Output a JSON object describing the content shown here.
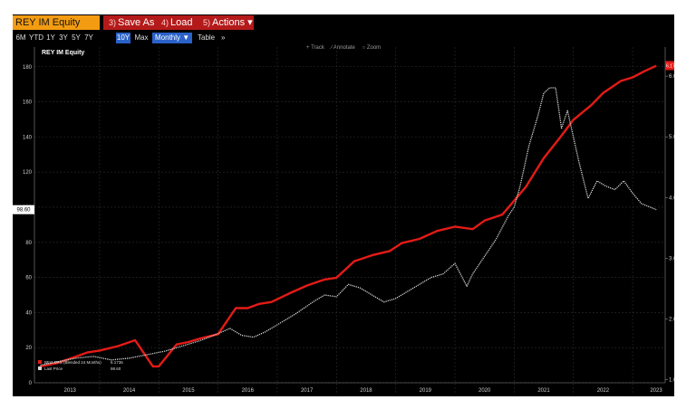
{
  "toolbar": {
    "ticker": "REY IM Equity",
    "save": {
      "num": "3)",
      "label": "Save As"
    },
    "load": {
      "num": "4)",
      "label": "Load"
    },
    "actions": {
      "num": "5)",
      "label": "Actions ▾"
    }
  },
  "ranges": [
    "6M",
    "YTD",
    "1Y",
    "3Y",
    "5Y",
    "7Y",
    "10Y",
    "Max"
  ],
  "active_range": "10Y",
  "frequency": "Monthly ▼",
  "table_label": "Table",
  "expand_label": "»",
  "tools": [
    "+ Track",
    "∕ Annotate",
    "○ Zoom"
  ],
  "colors": {
    "eps": "#e41b17",
    "price": "#d8d8d8",
    "ticker_bg": "#f39c12",
    "menu_bg": "#b41a1a",
    "active": "#2a62c9"
  },
  "chart_data": {
    "type": "line",
    "title": "REY IM Equity",
    "x_ticks": [
      "2013",
      "2014",
      "2015",
      "2016",
      "2017",
      "2018",
      "2019",
      "2020",
      "2021",
      "2022",
      "2023"
    ],
    "y_left": {
      "ticks": [
        0,
        20,
        40,
        60,
        80,
        100,
        120,
        140,
        160,
        180
      ],
      "range": [
        0,
        184
      ],
      "current_label": "98.60"
    },
    "y_right": {
      "ticks": [
        "1.00",
        "2.00",
        "3.00",
        "4.00",
        "5.00",
        "6.00"
      ],
      "range": [
        0.95,
        6.27
      ],
      "current_label": "6.1736"
    },
    "legend": [
      {
        "name": "BEst EPS (Blended 24 Months)",
        "value": "6.1736",
        "color": "#e41b17"
      },
      {
        "name": "Last Price",
        "value": "98.60",
        "color": "#d8d8d8"
      }
    ],
    "series": [
      {
        "name": "BEst EPS (Blended 24 Months)",
        "axis": "right",
        "x": [
          2013.0,
          2013.3,
          2013.6,
          2013.8,
          2014.0,
          2014.3,
          2014.6,
          2014.9,
          2015.0,
          2015.3,
          2015.5,
          2015.7,
          2016.0,
          2016.3,
          2016.5,
          2016.7,
          2016.9,
          2017.2,
          2017.5,
          2017.8,
          2018.0,
          2018.3,
          2018.6,
          2018.9,
          2019.1,
          2019.4,
          2019.7,
          2020.0,
          2020.3,
          2020.5,
          2020.8,
          2021.0,
          2021.2,
          2021.5,
          2021.8,
          2022.0,
          2022.3,
          2022.5,
          2022.8,
          2023.0,
          2023.2,
          2023.4
        ],
        "values": [
          1.22,
          1.28,
          1.38,
          1.45,
          1.48,
          1.55,
          1.65,
          1.22,
          1.22,
          1.58,
          1.62,
          1.68,
          1.75,
          2.18,
          2.18,
          2.25,
          2.28,
          2.42,
          2.55,
          2.65,
          2.68,
          2.95,
          3.05,
          3.12,
          3.25,
          3.32,
          3.45,
          3.52,
          3.48,
          3.62,
          3.72,
          3.95,
          4.18,
          4.65,
          5.02,
          5.28,
          5.52,
          5.72,
          5.92,
          5.98,
          6.08,
          6.17
        ]
      },
      {
        "name": "Last Price",
        "axis": "left",
        "x": [
          2013.0,
          2013.3,
          2013.6,
          2013.9,
          2014.2,
          2014.5,
          2014.8,
          2015.1,
          2015.4,
          2015.7,
          2016.0,
          2016.2,
          2016.4,
          2016.6,
          2016.8,
          2017.0,
          2017.3,
          2017.6,
          2017.8,
          2018.0,
          2018.2,
          2018.4,
          2018.6,
          2018.8,
          2019.0,
          2019.2,
          2019.4,
          2019.6,
          2019.8,
          2020.0,
          2020.2,
          2020.3,
          2020.5,
          2020.7,
          2020.9,
          2021.0,
          2021.1,
          2021.25,
          2021.4,
          2021.5,
          2021.6,
          2021.7,
          2021.8,
          2021.9,
          2022.0,
          2022.1,
          2022.25,
          2022.4,
          2022.55,
          2022.7,
          2022.85,
          2023.0,
          2023.15,
          2023.3,
          2023.4
        ],
        "values": [
          10,
          12,
          14,
          15,
          13,
          14,
          16,
          18,
          21,
          24,
          28,
          31,
          27,
          26,
          29,
          33,
          39,
          46,
          50,
          49,
          56,
          54,
          50,
          46,
          48,
          52,
          56,
          60,
          62,
          68,
          55,
          62,
          72,
          82,
          95,
          100,
          112,
          135,
          152,
          165,
          168,
          168,
          145,
          155,
          140,
          125,
          105,
          115,
          112,
          110,
          115,
          108,
          102,
          100,
          98.6
        ]
      }
    ]
  }
}
